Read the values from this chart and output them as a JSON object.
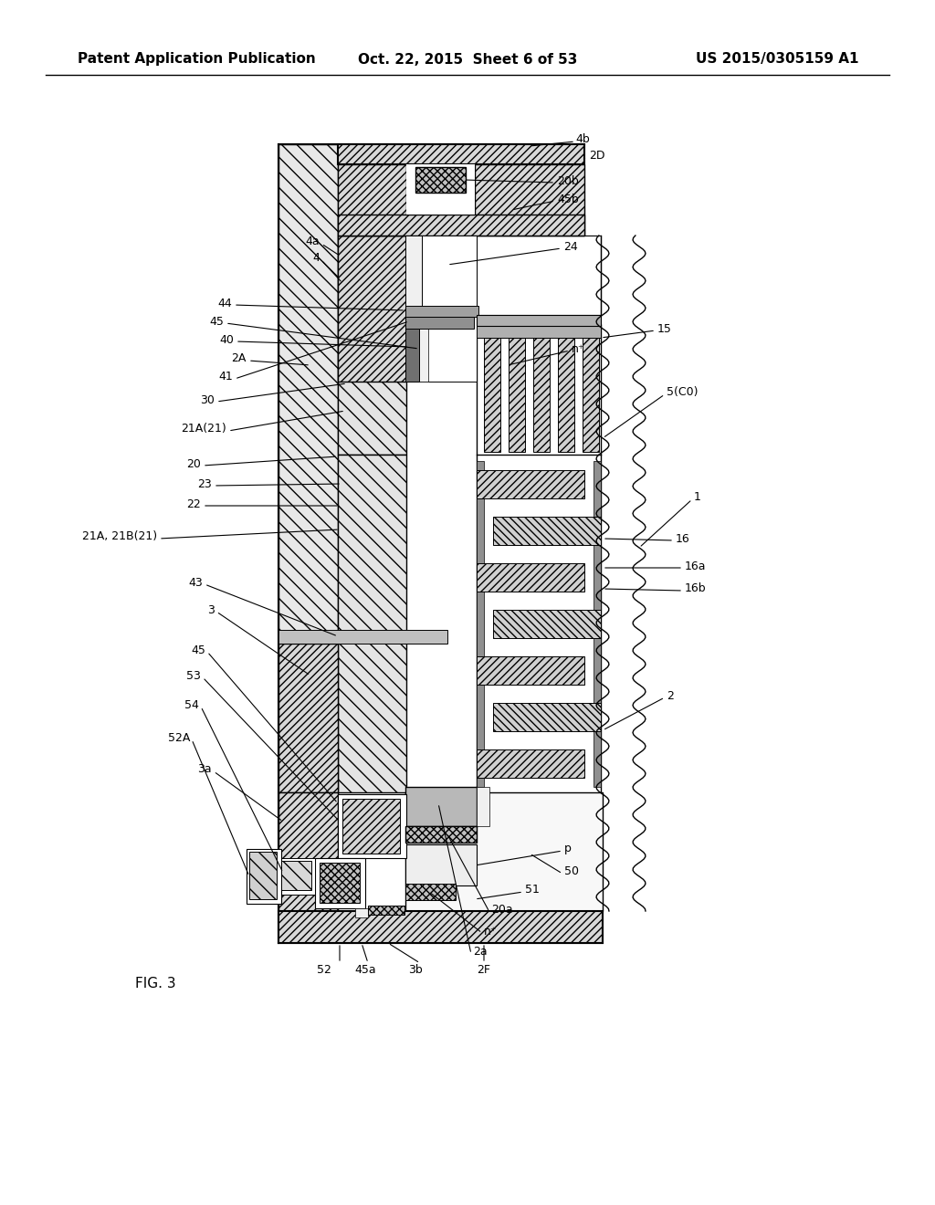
{
  "header_left": "Patent Application Publication",
  "header_center": "Oct. 22, 2015  Sheet 6 of 53",
  "header_right": "US 2015/0305159 A1",
  "fig_label": "FIG. 3",
  "background": "#ffffff",
  "font_size_header": 11,
  "font_size_label": 9
}
